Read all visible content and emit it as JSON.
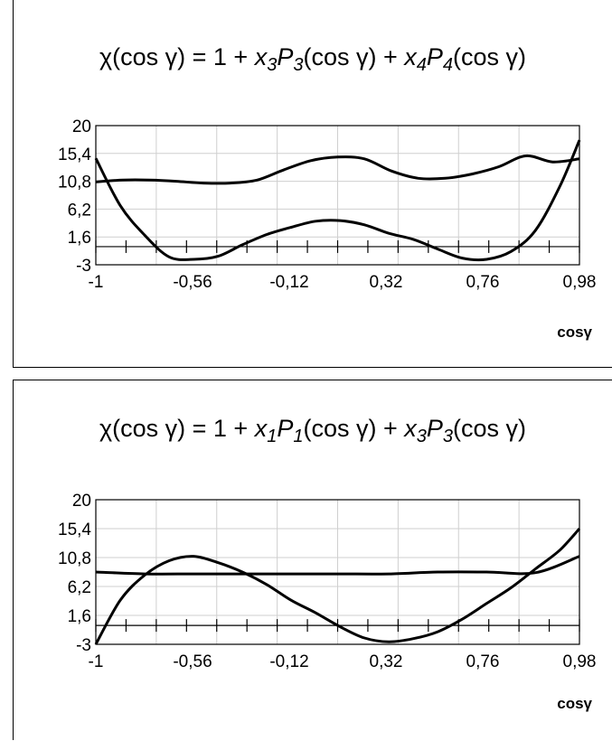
{
  "chart_data": [
    {
      "type": "line",
      "title": "χ(cos γ) = 1 + x₃P₃(cos γ) + x₄P₄(cos γ)",
      "title_parts": [
        "χ(cos γ) = 1 + ",
        "x",
        "3",
        "P",
        "3",
        "(cos γ) + ",
        "x",
        "4",
        "P",
        "4",
        "(cos γ)"
      ],
      "xlabel": "cosγ",
      "ylabel": "",
      "xlim": [
        -1,
        0.98
      ],
      "ylim": [
        -3,
        20
      ],
      "x_ticks": [
        "-1",
        "-0,56",
        "-0,12",
        "0,32",
        "0,76",
        "0,98"
      ],
      "y_ticks": [
        "-3",
        "1,6",
        "6,2",
        "10,8",
        "15,4",
        "20"
      ],
      "reference_line_y": 0,
      "grid": true,
      "series": [
        {
          "x": [
            -1,
            -0.89,
            -0.78,
            -0.67,
            -0.56,
            -0.45,
            -0.34,
            -0.23,
            -0.12,
            -0.01,
            0.1,
            0.21,
            0.32,
            0.43,
            0.54,
            0.65,
            0.76,
            0.87,
            0.98
          ],
          "values": [
            10.7,
            11,
            11,
            10.8,
            10.5,
            10.5,
            11,
            12.7,
            14.2,
            14.8,
            14.5,
            12.5,
            11.3,
            11.3,
            12,
            13.2,
            15,
            14,
            14.5
          ]
        },
        {
          "x": [
            -1,
            -0.9,
            -0.8,
            -0.7,
            -0.6,
            -0.5,
            -0.4,
            -0.3,
            -0.2,
            -0.1,
            0,
            0.1,
            0.2,
            0.3,
            0.4,
            0.5,
            0.6,
            0.7,
            0.8,
            0.9,
            0.98
          ],
          "values": [
            14.6,
            6.8,
            1.9,
            -1.7,
            -2.1,
            -1.6,
            0.3,
            2,
            3.2,
            4.2,
            4.3,
            3.6,
            2.2,
            1.2,
            -0.4,
            -1.9,
            -2.1,
            -0.8,
            2.7,
            10,
            17.6
          ]
        }
      ]
    },
    {
      "type": "line",
      "title": "χ(cos γ) = 1 + x₁P₁(cos γ) + x₃P₃(cos γ)",
      "title_parts": [
        "χ(cos γ) = 1 + ",
        "x",
        "1",
        "P",
        "1",
        "(cos γ) + ",
        "x",
        "3",
        "P",
        "3",
        "(cos γ)"
      ],
      "xlabel": "cosγ",
      "ylabel": "",
      "xlim": [
        -1,
        0.98
      ],
      "ylim": [
        -3,
        20
      ],
      "x_ticks": [
        "-1",
        "-0,56",
        "-0,12",
        "0,32",
        "0,76",
        "0,98"
      ],
      "y_ticks": [
        "-3",
        "1,6",
        "6,2",
        "10,8",
        "15,4",
        "20"
      ],
      "reference_line_y": 0,
      "grid": true,
      "series": [
        {
          "x": [
            -1,
            -0.8,
            -0.6,
            -0.4,
            -0.2,
            0,
            0.2,
            0.4,
            0.6,
            0.8,
            0.98
          ],
          "values": [
            8.5,
            8.2,
            8.2,
            8.2,
            8.2,
            8.2,
            8.2,
            8.5,
            8.5,
            8.4,
            11
          ]
        },
        {
          "x": [
            -1,
            -0.9,
            -0.8,
            -0.7,
            -0.6,
            -0.5,
            -0.4,
            -0.3,
            -0.2,
            -0.1,
            0,
            0.1,
            0.2,
            0.3,
            0.4,
            0.5,
            0.6,
            0.7,
            0.8,
            0.9,
            0.98
          ],
          "values": [
            -3,
            4,
            8,
            10.3,
            11,
            10,
            8.5,
            6.5,
            4,
            2,
            -0.2,
            -2,
            -2.6,
            -2.1,
            -1,
            1,
            3.5,
            6,
            9,
            12,
            15.4
          ]
        }
      ]
    }
  ]
}
